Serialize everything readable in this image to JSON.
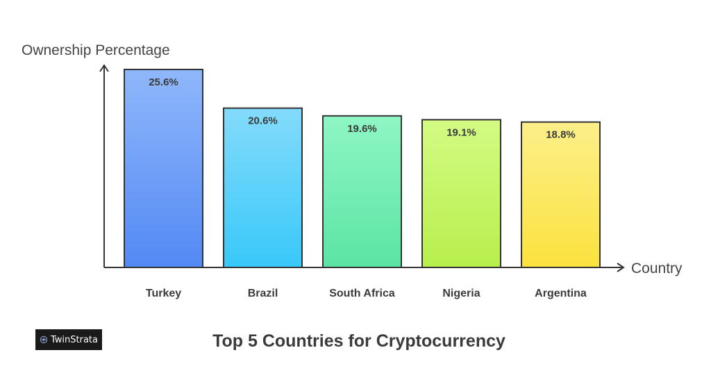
{
  "chart_data": {
    "type": "bar",
    "title": "Top 5 Countries for Cryptocurrency",
    "xlabel": "Country",
    "ylabel": "Ownership Percentage",
    "categories": [
      "Turkey",
      "Brazil",
      "South Africa",
      "Nigeria",
      "Argentina"
    ],
    "values": [
      25.6,
      20.6,
      19.6,
      19.1,
      18.8
    ],
    "value_labels": [
      "25.6%",
      "20.6%",
      "19.6%",
      "19.1%",
      "18.8%"
    ],
    "ylim": [
      0,
      25.6
    ],
    "grid": false,
    "bar_colors": [
      {
        "top": "#8fb7fb",
        "bottom": "#5389f4"
      },
      {
        "top": "#84dbfb",
        "bottom": "#38c8f9"
      },
      {
        "top": "#8ff6c4",
        "bottom": "#5be4a4"
      },
      {
        "top": "#d3fb83",
        "bottom": "#b7ef4c"
      },
      {
        "top": "#fcef8a",
        "bottom": "#fbe23e"
      }
    ]
  },
  "logo": {
    "text": "TwinStrata"
  },
  "colors": {
    "axis": "#333333",
    "bar_stroke": "#333333",
    "text": "#3a3a3a"
  }
}
